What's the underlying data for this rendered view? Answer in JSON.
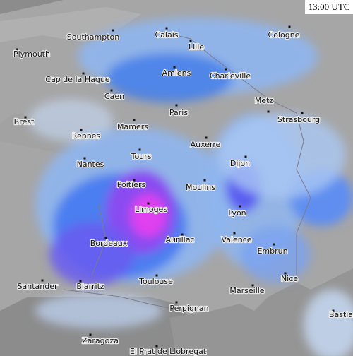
{
  "timestamp": "13:00 UTC",
  "cities": [
    {
      "label": "Southampton"
    },
    {
      "label": "Plymouth"
    },
    {
      "label": "Calais"
    },
    {
      "label": "Lille"
    },
    {
      "label": "Cologne"
    },
    {
      "label": "Cap de la Hague"
    },
    {
      "label": "Amiens"
    },
    {
      "label": "Charleville"
    },
    {
      "label": "Caen"
    },
    {
      "label": "Metz"
    },
    {
      "label": "Paris"
    },
    {
      "label": "Brest"
    },
    {
      "label": "Strasbourg"
    },
    {
      "label": "Mamers"
    },
    {
      "label": "Rennes"
    },
    {
      "label": "Auxerre"
    },
    {
      "label": "Tours"
    },
    {
      "label": "Nantes"
    },
    {
      "label": "Dijon"
    },
    {
      "label": "Poitiers"
    },
    {
      "label": "Moulins"
    },
    {
      "label": "Limoges"
    },
    {
      "label": "Lyon"
    },
    {
      "label": "Aurillac"
    },
    {
      "label": "Bordeaux"
    },
    {
      "label": "Valence"
    },
    {
      "label": "Embrun"
    },
    {
      "label": "Nice"
    },
    {
      "label": "Santander"
    },
    {
      "label": "Biarritz"
    },
    {
      "label": "Toulouse"
    },
    {
      "label": "Marseille"
    },
    {
      "label": "Perpignan"
    },
    {
      "label": "Bastia"
    },
    {
      "label": "Zaragoza"
    },
    {
      "label": "El Prat de Llobregat"
    }
  ]
}
